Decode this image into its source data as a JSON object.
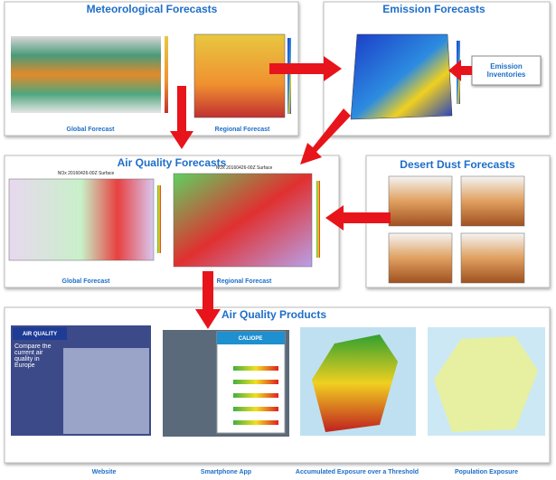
{
  "meteorological": {
    "title": "Meteorological Forecasts",
    "global_label": "Global Forecast",
    "regional_label": "Regional Forecast"
  },
  "emission": {
    "title": "Emission Forecasts",
    "inventories": "Emission Inventories"
  },
  "air_quality_forecasts": {
    "title": "Air Quality Forecasts",
    "global_label": "Global Forecast",
    "regional_label": "Regional Forecast",
    "global_map_title": "NOx 20160426-00Z Surface",
    "regional_map_title": "NOx 20160426-00Z Surface"
  },
  "desert_dust": {
    "title": "Desert Dust Forecasts"
  },
  "products": {
    "title": "Air Quality Products",
    "website_banner": "AIR QUALITY",
    "website_text": "Compare the current air quality in Europe",
    "app_name": "CALIOPE",
    "labels": [
      "Website",
      "Smartphone App",
      "Accumulated Exposure over a Threshold",
      "Population Exposure"
    ]
  }
}
